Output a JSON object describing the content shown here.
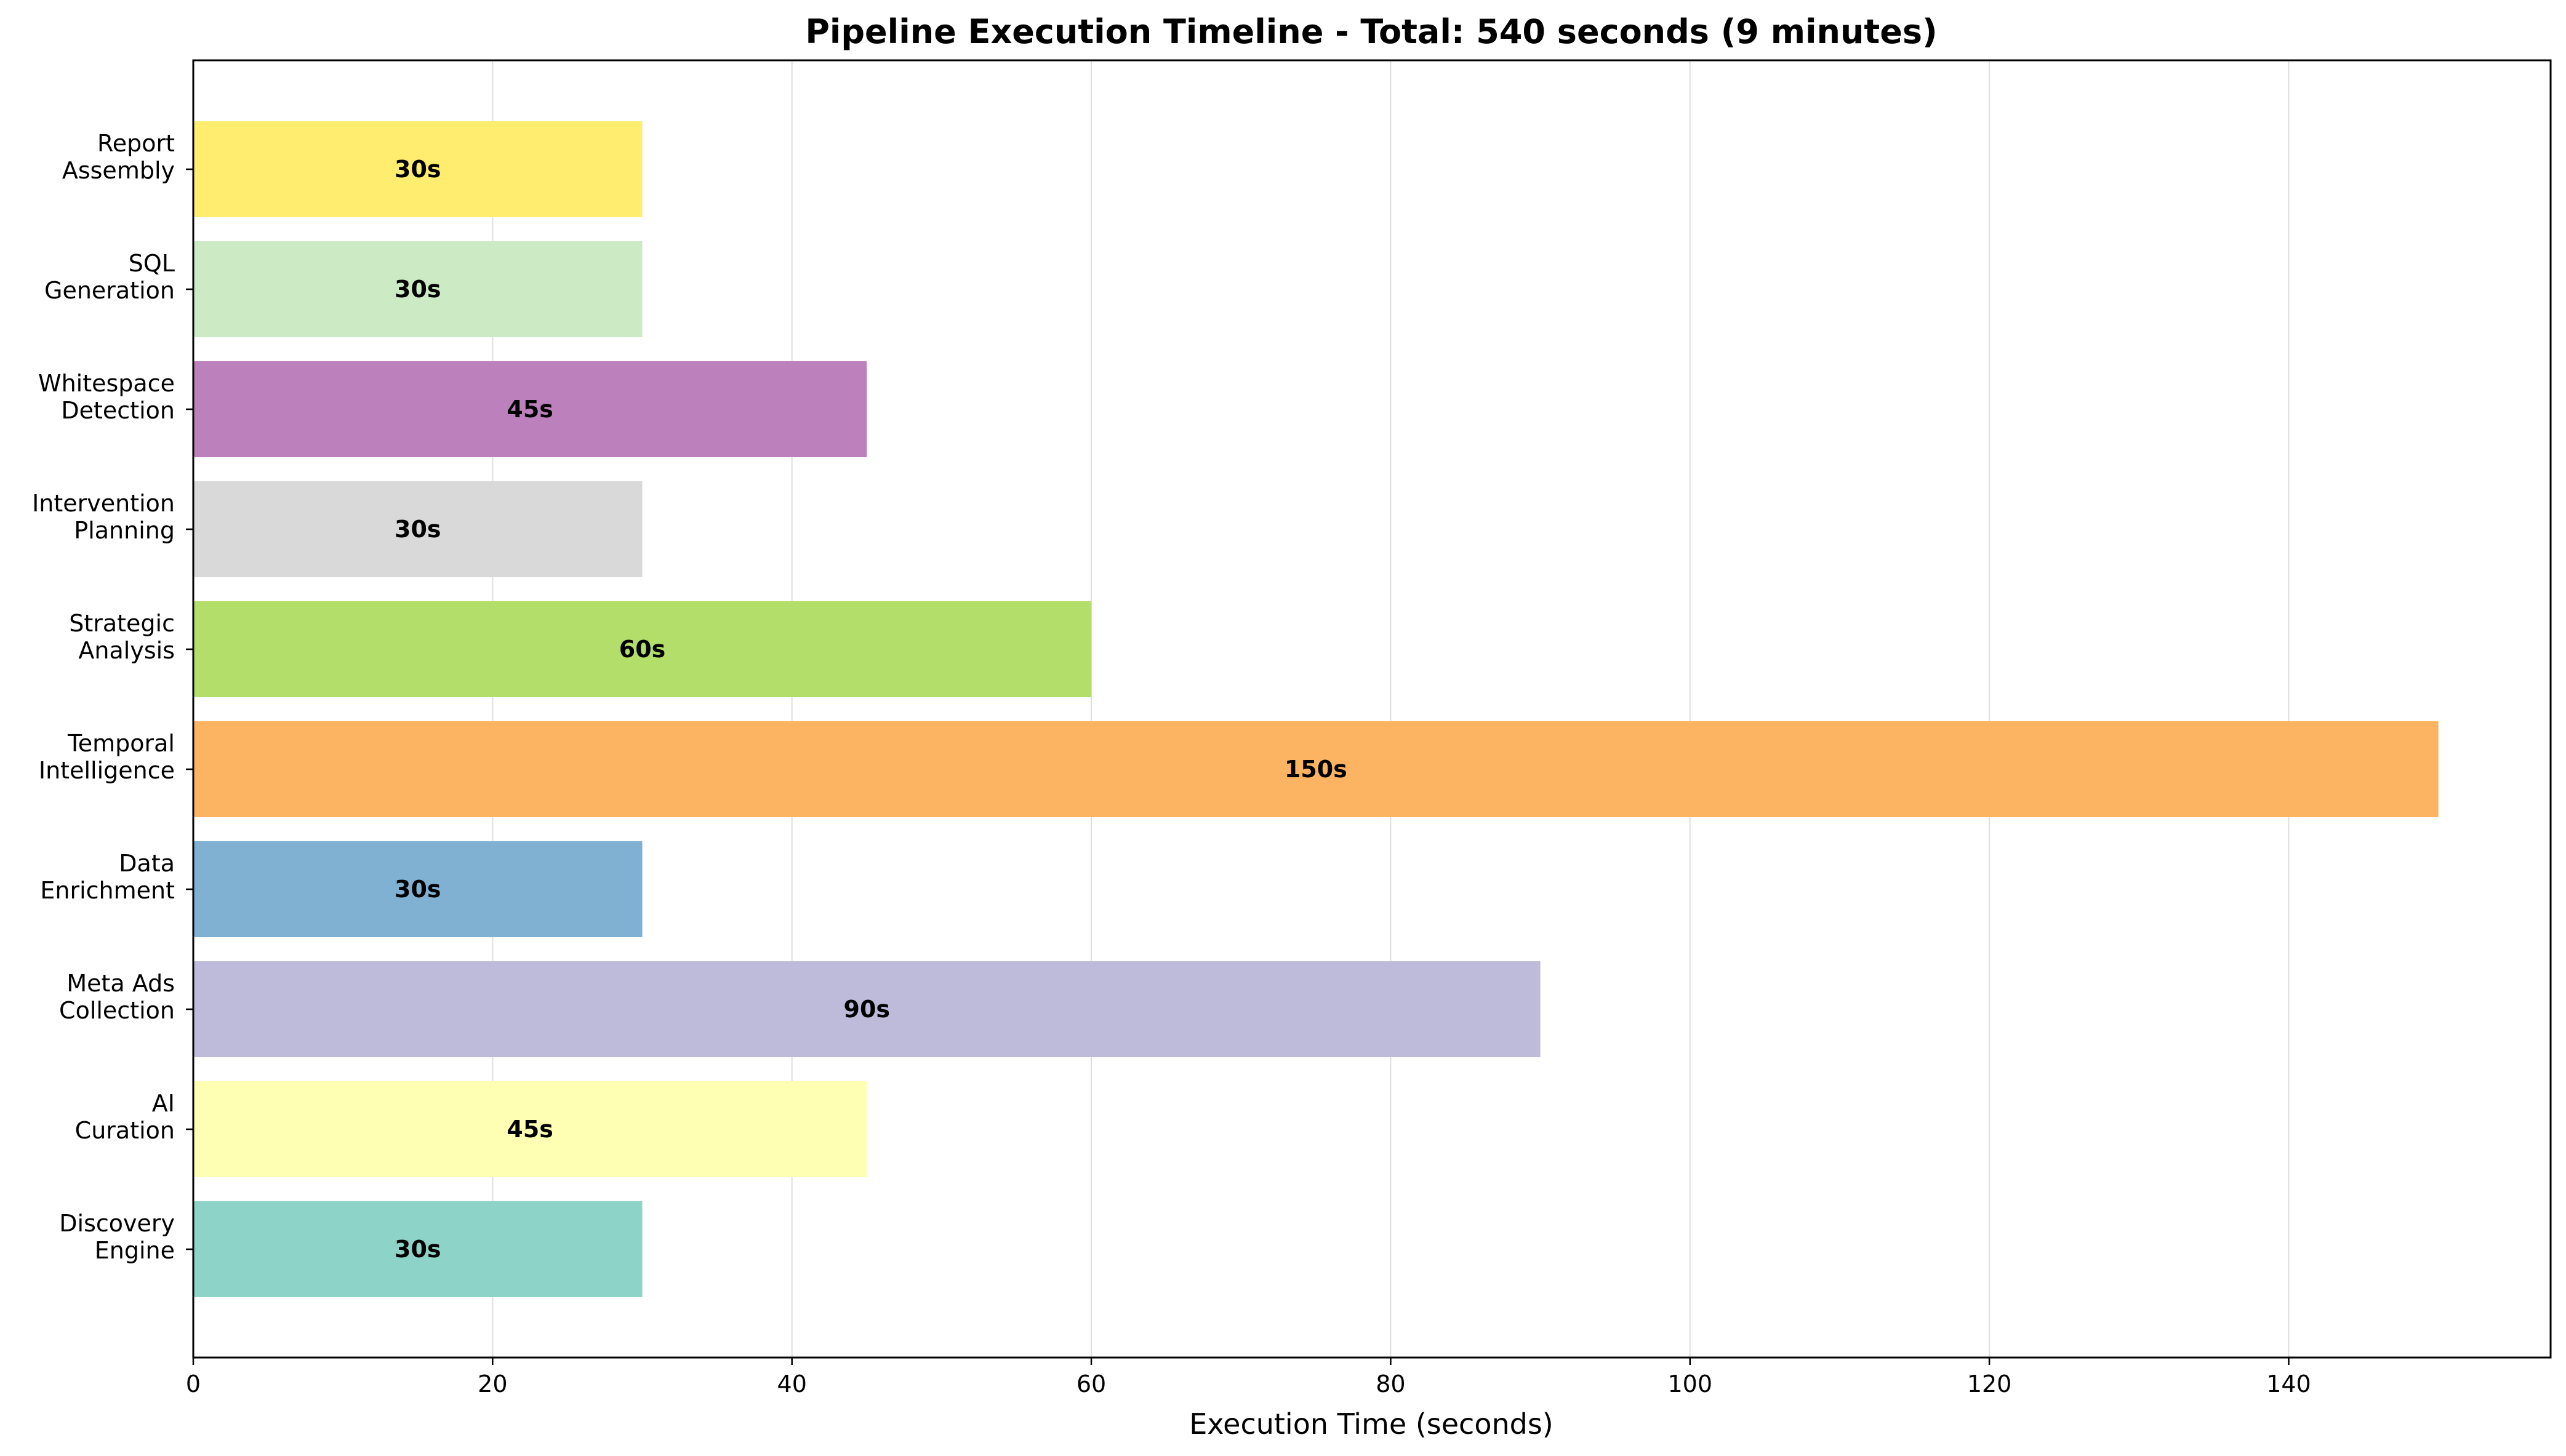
{
  "chart_data": {
    "type": "bar",
    "orientation": "horizontal",
    "title": "Pipeline Execution Timeline - Total: 540 seconds (9 minutes)",
    "xlabel": "Execution Time (seconds)",
    "ylabel": "",
    "xlim": [
      0,
      157.5
    ],
    "x_ticks": [
      0,
      20,
      40,
      60,
      80,
      100,
      120,
      140
    ],
    "grid": "x-axis vertical lines",
    "legend": "none",
    "categories": [
      "Discovery\nEngine",
      "AI\nCuration",
      "Meta Ads\nCollection",
      "Data\nEnrichment",
      "Temporal\nIntelligence",
      "Strategic\nAnalysis",
      "Intervention\nPlanning",
      "Whitespace\nDetection",
      "SQL\nGeneration",
      "Report\nAssembly"
    ],
    "values": [
      30,
      45,
      90,
      30,
      150,
      60,
      30,
      45,
      30,
      30
    ],
    "data_labels": [
      "30s",
      "45s",
      "90s",
      "30s",
      "150s",
      "60s",
      "30s",
      "45s",
      "30s",
      "30s"
    ],
    "colors": [
      "#8dd3c7",
      "#ffffb3",
      "#bebada",
      "#80b1d3",
      "#fdb462",
      "#b3de69",
      "#d9d9d9",
      "#bc80bd",
      "#ccebc5",
      "#ffed6f"
    ]
  }
}
